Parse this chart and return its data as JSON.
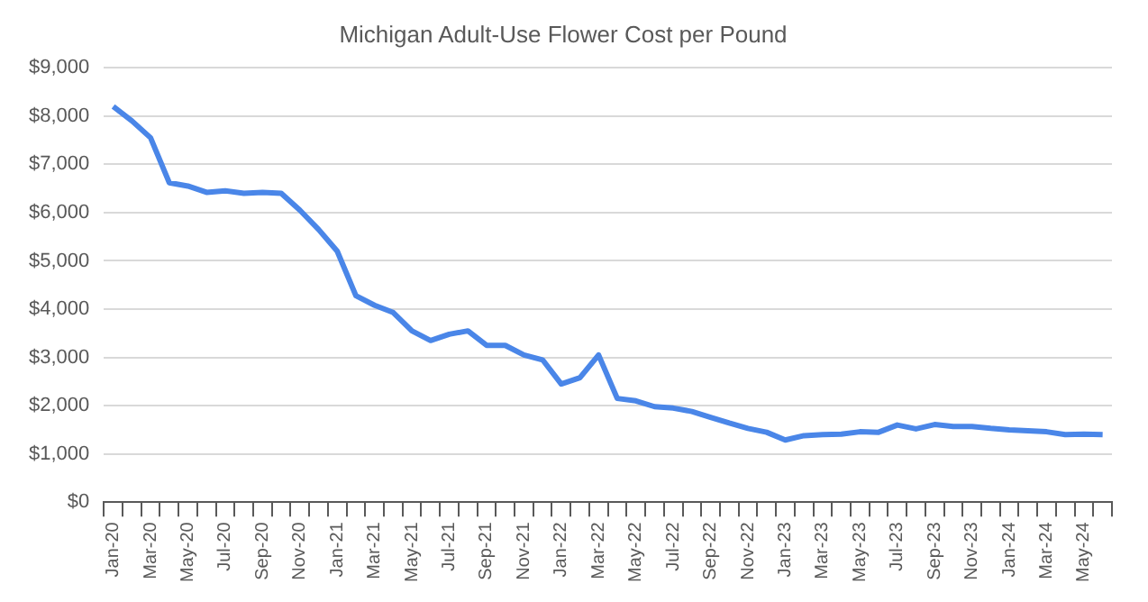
{
  "chart_data": {
    "type": "line",
    "title": "Michigan Adult-Use Flower Cost per Pound",
    "categories": [
      "Jan-20",
      null,
      "Mar-20",
      null,
      "May-20",
      null,
      "Jul-20",
      null,
      "Sep-20",
      null,
      "Nov-20",
      null,
      "Jan-21",
      null,
      "Mar-21",
      null,
      "May-21",
      null,
      "Jul-21",
      null,
      "Sep-21",
      null,
      "Nov-21",
      null,
      "Jan-22",
      null,
      "Mar-22",
      null,
      "May-22",
      null,
      "Jul-22",
      null,
      "Sep-22",
      null,
      "Nov-22",
      null,
      "Jan-23",
      null,
      "Mar-23",
      null,
      "May-23",
      null,
      "Jul-23",
      null,
      "Sep-23",
      null,
      "Nov-23",
      null,
      "Jan-24",
      null,
      "Mar-24",
      null,
      "May-24",
      null
    ],
    "series": [
      {
        "color": "#4a86e8",
        "values": [
          8200,
          7900,
          7550,
          6620,
          6550,
          6420,
          6450,
          6400,
          6420,
          6400,
          6050,
          5650,
          5200,
          4280,
          4080,
          3930,
          3550,
          3350,
          3480,
          3550,
          3250,
          3250,
          3050,
          2950,
          2450,
          2580,
          3050,
          2150,
          2100,
          1980,
          1950,
          1880,
          1760,
          1640,
          1530,
          1450,
          1290,
          1380,
          1400,
          1410,
          1460,
          1450,
          1600,
          1520,
          1610,
          1570,
          1570,
          1530,
          1500,
          1480,
          1460,
          1400,
          1410,
          1400
        ]
      }
    ],
    "ylim": [
      0,
      9000
    ],
    "yticks": [
      {
        "value": 0,
        "label": "$0"
      },
      {
        "value": 1000,
        "label": "$1,000"
      },
      {
        "value": 2000,
        "label": "$2,000"
      },
      {
        "value": 3000,
        "label": "$3,000"
      },
      {
        "value": 4000,
        "label": "$4,000"
      },
      {
        "value": 5000,
        "label": "$5,000"
      },
      {
        "value": 6000,
        "label": "$6,000"
      },
      {
        "value": 7000,
        "label": "$7,000"
      },
      {
        "value": 8000,
        "label": "$8,000"
      },
      {
        "value": 9000,
        "label": "$9,000"
      }
    ],
    "grid": "y",
    "legend": false,
    "marker": "none",
    "line_style": "solid"
  }
}
